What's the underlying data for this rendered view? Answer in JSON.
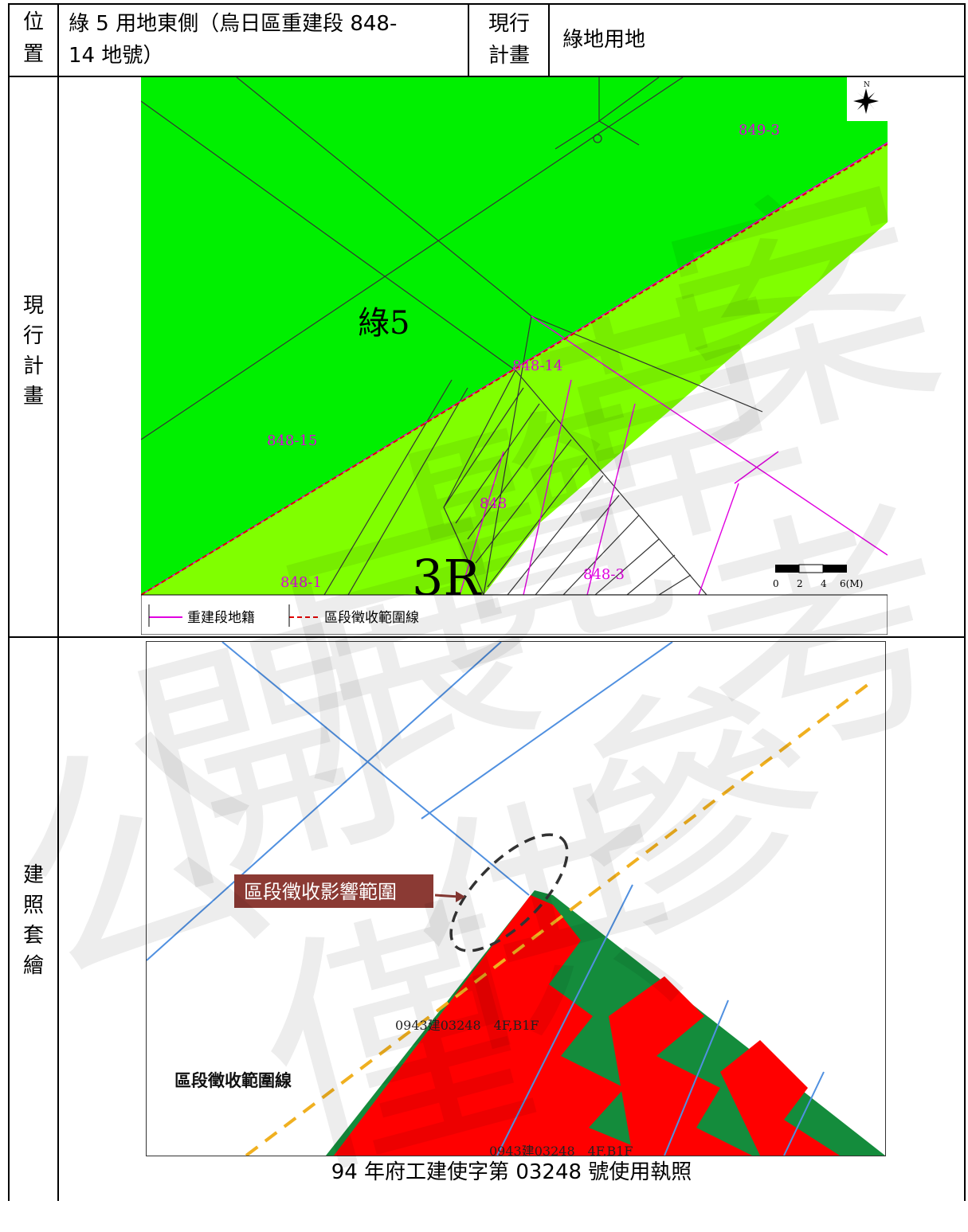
{
  "header": {
    "position_label": [
      "位",
      "置"
    ],
    "location_text_line1": "綠 5 用地東側（烏日區重建段 848-",
    "location_text_line2": "14 地號）",
    "current_plan_label": [
      "現行",
      "計畫"
    ],
    "current_plan_value": "綠地用地"
  },
  "row_current_plan": {
    "label": [
      "現",
      "行",
      "計",
      "畫"
    ],
    "map": {
      "zone_label": "綠5",
      "zone_3r": "3R",
      "parcels": [
        "849-3",
        "848-14",
        "848-15",
        "848",
        "848-1",
        "848-3"
      ],
      "compass": "N",
      "scale_ticks": [
        "0",
        "2",
        "4",
        "6(M)"
      ],
      "legend": [
        {
          "label": "重建段地籍",
          "color": "#e000e0"
        },
        {
          "label": "區段徵收範圍線",
          "color": "#e00000"
        }
      ]
    }
  },
  "row_overlay": {
    "label": [
      "建",
      "照",
      "套",
      "繪"
    ],
    "map": {
      "callout": "區段徵收影響範圍",
      "boundary_label": "區段徵收範圍線",
      "building_label_1": "0943建03248　4F,B1F",
      "building_label_2": "0943建03248　4F,B1F"
    },
    "caption": "94 年府工建使字第 03248 號使用執照"
  },
  "watermark": {
    "chars": [
      "公",
      "開",
      "展",
      "覽",
      "草",
      "案",
      "僅",
      "供",
      "參",
      "考"
    ]
  },
  "colors": {
    "dark_green": "#00f000",
    "light_green": "#80ff00",
    "parcel_magenta": "#e000e0",
    "red_building": "#ff0000",
    "forest_green": "#148c3c",
    "orange_dash": "#f0b020",
    "blue_line": "#5090e0",
    "callout_bg": "#8b3a34"
  }
}
